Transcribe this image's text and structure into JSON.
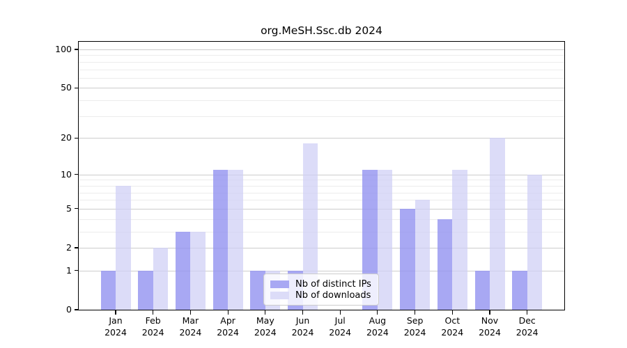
{
  "title": "org.MeSH.Ssc.db 2024",
  "legend": {
    "items": [
      {
        "label": "Nb of distinct IPs",
        "color": "#a8a8f3"
      },
      {
        "label": "Nb of downloads",
        "color": "#dcdcf8"
      }
    ]
  },
  "chart_data": {
    "type": "bar",
    "title": "org.MeSH.Ssc.db 2024",
    "categories": [
      "Jan",
      "Feb",
      "Mar",
      "Apr",
      "May",
      "Jun",
      "Jul",
      "Aug",
      "Sep",
      "Oct",
      "Nov",
      "Dec"
    ],
    "category_year": "2024",
    "series": [
      {
        "name": "Nb of distinct IPs",
        "color": "#a8a8f3",
        "values": [
          1,
          1,
          3,
          11,
          1,
          1,
          0,
          11,
          5,
          4,
          1,
          1
        ]
      },
      {
        "name": "Nb of downloads",
        "color": "#dcdcf8",
        "values": [
          8,
          2,
          3,
          11,
          1,
          18,
          0,
          11,
          6,
          11,
          20,
          10
        ]
      }
    ],
    "xlabel": "",
    "ylabel": "",
    "yscale": "log10(1+value)",
    "y_ticks": [
      0,
      1,
      2,
      5,
      10,
      20,
      50,
      100
    ],
    "y_minor_gridlines": [
      3,
      4,
      6,
      7,
      8,
      9,
      30,
      40,
      60,
      70,
      80,
      90
    ],
    "ylim": [
      0,
      115
    ],
    "grid": true,
    "legend_position": "inside-bottom-center"
  },
  "colors": {
    "distinct_ips_bar": "#a8a8f3",
    "downloads_bar": "#dcdcf8",
    "major_gridline": "#cccccc",
    "minor_gridline": "#ececec",
    "axis": "#000000",
    "background": "#ffffff"
  }
}
